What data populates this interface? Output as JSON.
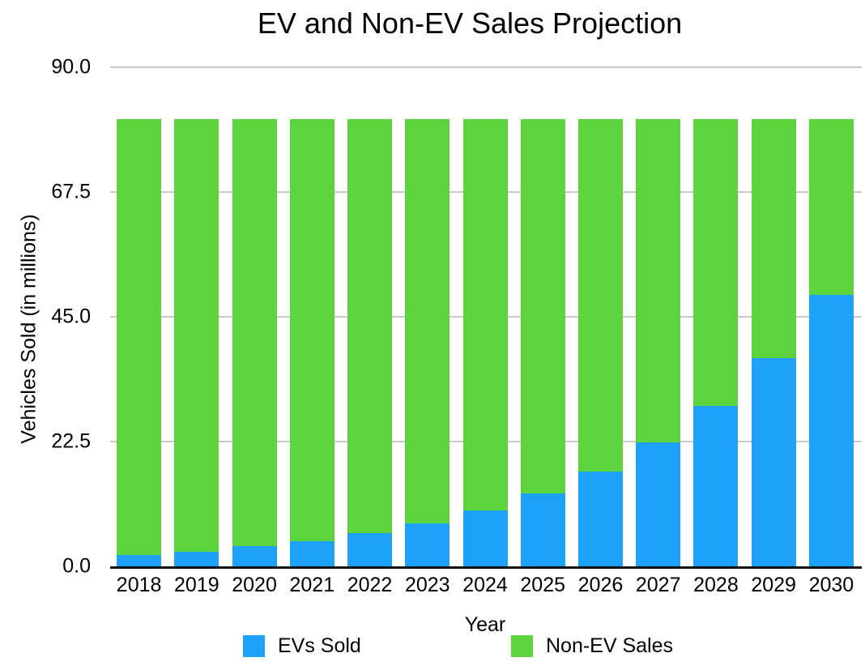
{
  "chart": {
    "title": "EV and Non-EV Sales Projection",
    "x_axis_title": "Year",
    "y_axis_title": "Vehicles Sold (in millions)"
  },
  "chart_data": {
    "type": "bar",
    "stacked": true,
    "title": "EV and Non-EV Sales Projection",
    "xlabel": "Year",
    "ylabel": "Vehicles Sold (in millions)",
    "categories": [
      "2018",
      "2019",
      "2020",
      "2021",
      "2022",
      "2023",
      "2024",
      "2025",
      "2026",
      "2027",
      "2028",
      "2029",
      "2030"
    ],
    "series": [
      {
        "name": "EVs Sold",
        "color": "#1ea1f8",
        "values": [
          2.1,
          2.7,
          3.6,
          4.6,
          6.0,
          7.8,
          10.1,
          13.2,
          17.1,
          22.3,
          28.9,
          37.6,
          48.9
        ]
      },
      {
        "name": "Non-EV Sales",
        "color": "#5dd33e",
        "values": [
          78.6,
          78.0,
          77.1,
          76.1,
          74.7,
          72.9,
          70.6,
          67.5,
          63.6,
          58.4,
          51.8,
          43.1,
          31.8
        ]
      }
    ],
    "total_per_year": 80.7,
    "ylim": [
      0,
      90
    ],
    "yticks": [
      0,
      22.5,
      45,
      67.5,
      90
    ],
    "ytick_labels": [
      "0.0",
      "22.5",
      "45.0",
      "67.5",
      "90.0"
    ],
    "grid": "horizontal",
    "grid_color": "#c9c9c9",
    "axis_color": "#121212",
    "legend_position": "bottom",
    "background": "#ffffff"
  }
}
